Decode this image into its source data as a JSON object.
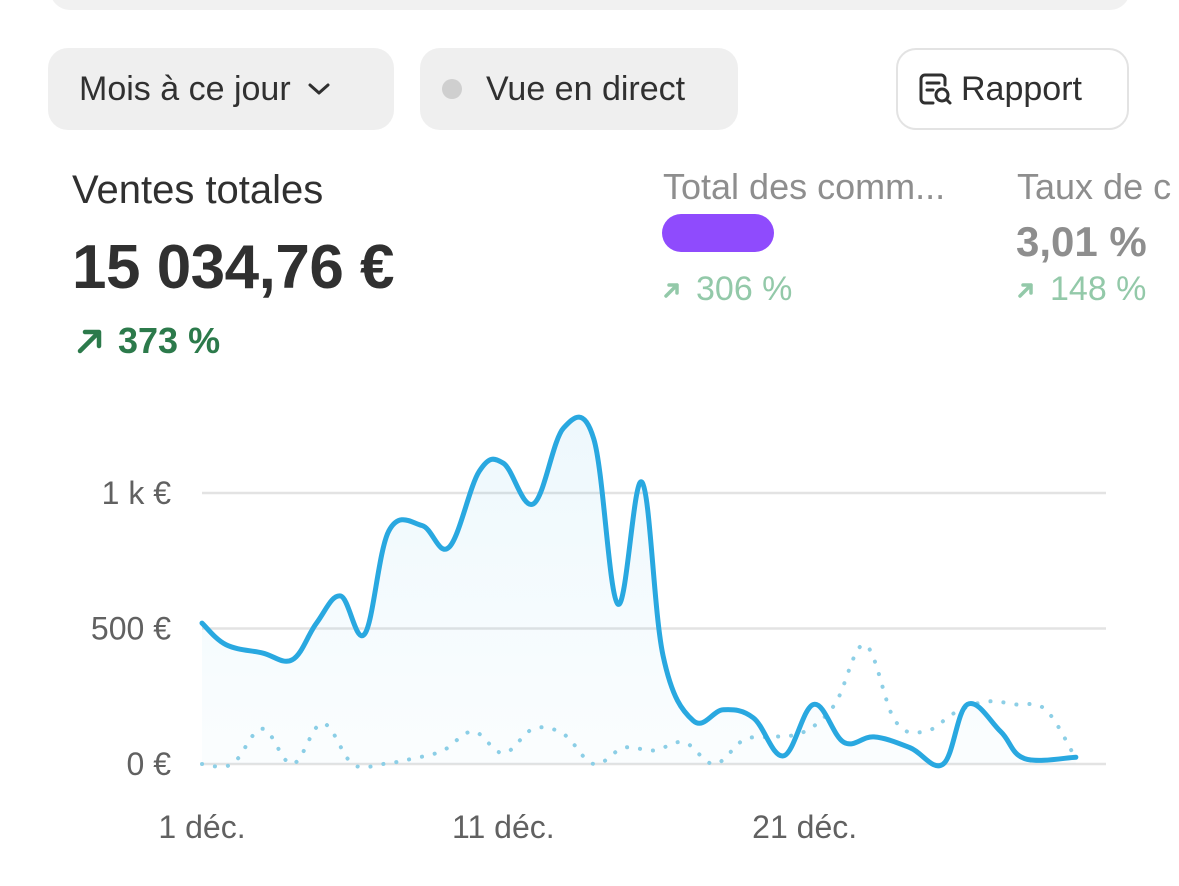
{
  "toolbar": {
    "period_label": "Mois à ce jour",
    "live_label": "Vue en direct",
    "report_label": "Rapport",
    "icons": {
      "period": "chevron-down-icon",
      "live": "status-dot-icon",
      "report": "report-search-icon"
    }
  },
  "metrics": {
    "total_sales": {
      "title": "Ventes totales",
      "value": "15 034,76 €",
      "change": "373 %"
    },
    "total_orders": {
      "title": "Total des comm...",
      "value_redacted": true,
      "change": "306 %"
    },
    "conversion_rate": {
      "title": "Taux de c",
      "value": "3,01 %",
      "change": "148 %"
    }
  },
  "colors": {
    "accent": "#29a8e0",
    "comparison": "#8dcfe6",
    "positive": "#2c7a4b",
    "positive_dim": "#93c9a9",
    "redaction": "#8f4bfd"
  },
  "chart_data": {
    "type": "line",
    "y_ticks": [
      "1 k €",
      "500 €",
      "0 €"
    ],
    "y_tick_values": [
      1000,
      500,
      0
    ],
    "x_ticks": [
      "1 déc.",
      "11 déc.",
      "21 déc."
    ],
    "x_tick_values": [
      1,
      11,
      21
    ],
    "ylim": [
      0,
      1300
    ],
    "xlim": [
      1,
      31
    ],
    "grid": true,
    "series": [
      {
        "style": "solid",
        "values": [
          [
            1,
            520
          ],
          [
            1.8,
            440
          ],
          [
            3,
            410
          ],
          [
            4,
            385
          ],
          [
            4.8,
            520
          ],
          [
            5.6,
            620
          ],
          [
            6.4,
            480
          ],
          [
            7.2,
            860
          ],
          [
            8.3,
            880
          ],
          [
            9.2,
            800
          ],
          [
            10.2,
            1080
          ],
          [
            11,
            1110
          ],
          [
            12,
            960
          ],
          [
            13,
            1240
          ],
          [
            14,
            1200
          ],
          [
            14.8,
            590
          ],
          [
            15.6,
            1040
          ],
          [
            16.3,
            400
          ],
          [
            17.3,
            160
          ],
          [
            18.3,
            200
          ],
          [
            19.3,
            170
          ],
          [
            20.3,
            30
          ],
          [
            21.3,
            220
          ],
          [
            22.3,
            80
          ],
          [
            23.3,
            100
          ],
          [
            24.5,
            60
          ],
          [
            25.6,
            0
          ],
          [
            26.4,
            220
          ],
          [
            27.5,
            120
          ],
          [
            28.3,
            20
          ],
          [
            30,
            25
          ]
        ]
      },
      {
        "style": "dotted",
        "values": [
          [
            1,
            0
          ],
          [
            2,
            0
          ],
          [
            3,
            130
          ],
          [
            4,
            0
          ],
          [
            5,
            150
          ],
          [
            6,
            0
          ],
          [
            7,
            0
          ],
          [
            8,
            20
          ],
          [
            9,
            50
          ],
          [
            10,
            120
          ],
          [
            11,
            40
          ],
          [
            12,
            130
          ],
          [
            13,
            110
          ],
          [
            14,
            0
          ],
          [
            15,
            60
          ],
          [
            16,
            50
          ],
          [
            17,
            80
          ],
          [
            18,
            0
          ],
          [
            19,
            90
          ],
          [
            20,
            100
          ],
          [
            21,
            120
          ],
          [
            22,
            220
          ],
          [
            23,
            440
          ],
          [
            24,
            160
          ],
          [
            25,
            120
          ],
          [
            26,
            190
          ],
          [
            27,
            230
          ],
          [
            28,
            220
          ],
          [
            29,
            200
          ],
          [
            30,
            20
          ]
        ]
      }
    ]
  }
}
